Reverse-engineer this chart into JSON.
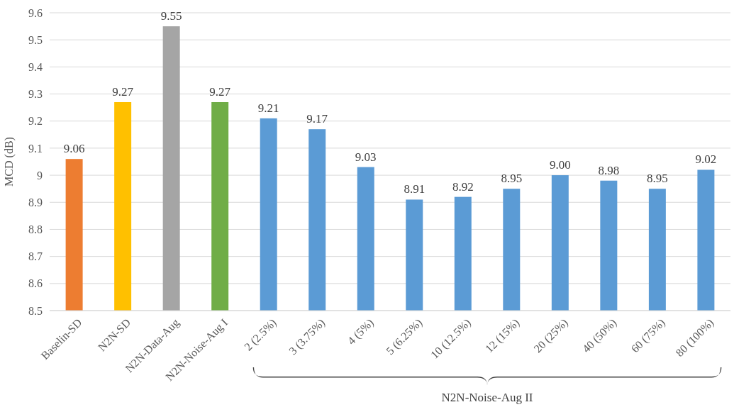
{
  "chart_data": {
    "type": "bar",
    "ylabel": "MCD (dB)",
    "categories": [
      "Baselin-SD",
      "N2N-SD",
      "N2N-Data-Aug",
      "N2N-Noise-Aug I",
      "2 (2.5%)",
      "3 (3.75%)",
      "4 (5%)",
      "5 (6.25%)",
      "10 (12.5%)",
      "12 (15%)",
      "20 (25%)",
      "40 (50%)",
      "60 (75%)",
      "80 (100%)"
    ],
    "values": [
      9.06,
      9.27,
      9.55,
      9.27,
      9.21,
      9.17,
      9.03,
      8.91,
      8.92,
      8.95,
      9.0,
      8.98,
      8.95,
      9.02
    ],
    "value_labels": [
      "9.06",
      "9.27",
      "9.55",
      "9.27",
      "9.21",
      "9.17",
      "9.03",
      "8.91",
      "8.92",
      "8.95",
      "9.00",
      "8.98",
      "8.95",
      "9.02"
    ],
    "colors": [
      "#ed7d31",
      "#ffc000",
      "#a5a5a5",
      "#70ad47",
      "#5b9bd5",
      "#5b9bd5",
      "#5b9bd5",
      "#5b9bd5",
      "#5b9bd5",
      "#5b9bd5",
      "#5b9bd5",
      "#5b9bd5",
      "#5b9bd5",
      "#5b9bd5"
    ],
    "ylim": [
      8.5,
      9.6
    ],
    "yticks": [
      8.5,
      8.6,
      8.7,
      8.8,
      8.9,
      9,
      9.1,
      9.2,
      9.3,
      9.4,
      9.5,
      9.6
    ],
    "grid": "y",
    "annotations": [
      "N2N-Noise-Aug II"
    ]
  }
}
